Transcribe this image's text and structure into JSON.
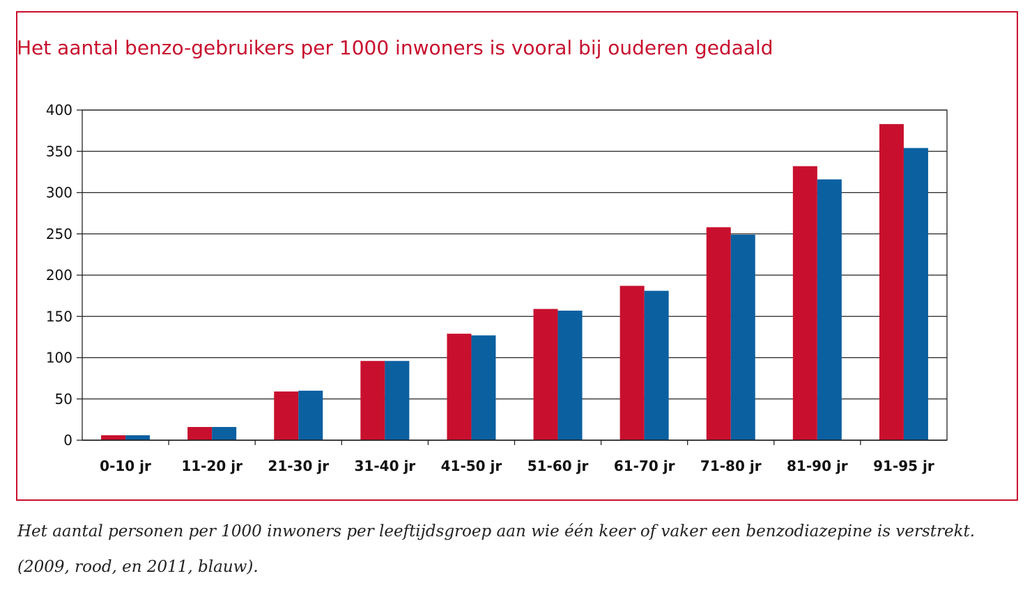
{
  "chart_data": {
    "type": "bar",
    "title": "Het aantal benzo-gebruikers per 1000 inwoners is vooral bij ouderen gedaald",
    "xlabel": "",
    "ylabel": "",
    "ylim": [
      0,
      400
    ],
    "yticks": [
      "0",
      "50",
      "100",
      "150",
      "200",
      "250",
      "300",
      "350",
      "400"
    ],
    "grid": true,
    "categories": [
      "0-10 jr",
      "11-20 jr",
      "21-30 jr",
      "31-40 jr",
      "41-50 jr",
      "51-60 jr",
      "61-70 jr",
      "71-80 jr",
      "81-90 jr",
      "91-95 jr"
    ],
    "series": [
      {
        "color": "#c8102e",
        "values": [
          6,
          16,
          59,
          96,
          129,
          159,
          187,
          258,
          332,
          383
        ]
      },
      {
        "color": "#0b60a0",
        "values": [
          6,
          16,
          60,
          96,
          127,
          157,
          181,
          249,
          316,
          354
        ]
      }
    ]
  },
  "caption": {
    "line1": "Het aantal personen per 1000 inwoners per leeftijdsgroep aan wie één keer of vaker  een benzodiazepine is verstrekt.",
    "line2": "(2009, rood, en 2011, blauw)."
  }
}
